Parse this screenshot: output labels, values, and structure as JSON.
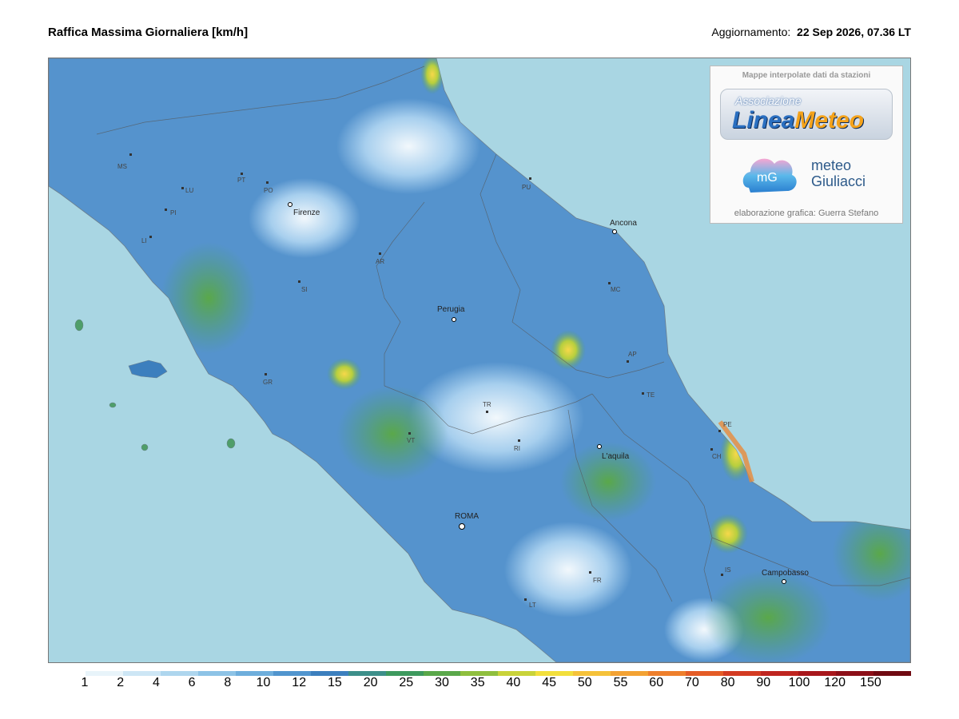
{
  "header": {
    "title": "Raffica Massima Giornaliera [km/h]",
    "updated_label": "Aggiornamento:",
    "updated_value": "22 Sep 2026, 07.36 LT"
  },
  "logo": {
    "caption": "Mappe interpolate dati da stazioni",
    "assoc": "Associazione",
    "brand_a": "Linea",
    "brand_b": "Meteo",
    "mg_initials": "mG",
    "mg_line1": "meteo",
    "mg_line2": "Giuliacci",
    "credit": "elaborazione grafica: Guerra Stefano"
  },
  "cities": [
    {
      "name": "Firenze"
    },
    {
      "name": "Ancona"
    },
    {
      "name": "Perugia"
    },
    {
      "name": "L'aquila"
    },
    {
      "name": "ROMA"
    },
    {
      "name": "Campobasso"
    }
  ],
  "provinces": [
    "MS",
    "LU",
    "PI",
    "LI",
    "PT",
    "PO",
    "AR",
    "SI",
    "GR",
    "PU",
    "MC",
    "AP",
    "TE",
    "TR",
    "VT",
    "RI",
    "PE",
    "CH",
    "IS",
    "FR",
    "LT"
  ],
  "scale": {
    "labels": [
      "1",
      "2",
      "4",
      "6",
      "8",
      "10",
      "12",
      "15",
      "20",
      "25",
      "30",
      "35",
      "40",
      "45",
      "50",
      "55",
      "60",
      "70",
      "80",
      "90",
      "100",
      "120",
      "150"
    ],
    "colors": [
      "#ffffff",
      "#e8f4fa",
      "#cde6f5",
      "#aed6ee",
      "#8dc3e6",
      "#6eaedc",
      "#5195ce",
      "#3c7fbe",
      "#3d8f8a",
      "#3e9a5e",
      "#5aa84a",
      "#8fbf3e",
      "#c9d33a",
      "#f2df3c",
      "#f5c23a",
      "#f3a233",
      "#ee7f2c",
      "#e45c26",
      "#d33b22",
      "#bf2520",
      "#a8171c",
      "#8c0f18",
      "#700a12"
    ]
  },
  "colors": {
    "sea": "#a9d6e3",
    "land_low": "#3c7fbe",
    "land_mid": "#5e9ed6",
    "land_light": "#a7cfee",
    "land_green": "#4f9e6a",
    "land_yellow": "#e4d93e"
  }
}
